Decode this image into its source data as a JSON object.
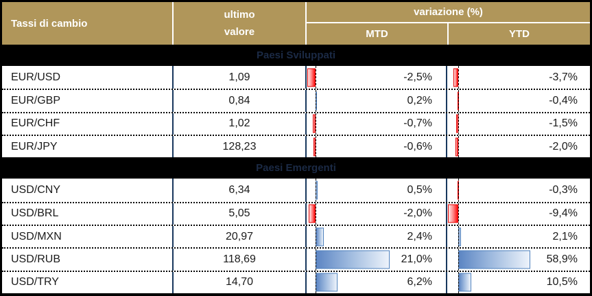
{
  "header": {
    "title": "Tassi di cambio",
    "value_line1": "ultimo",
    "value_line2": "valore",
    "variation": "variazione (%)",
    "mtd": "MTD",
    "ytd": "YTD"
  },
  "colors": {
    "header_gold": "#B0965A",
    "divider_navy": "#17375D",
    "section_black": "#000000",
    "negative_bar_red": "#FF0000",
    "positive_bar_blue": "#4F81BD"
  },
  "scales": {
    "mtd_max": 21.0,
    "ytd_max": 58.9
  },
  "sections": [
    {
      "label": "Paesi Sviluppati",
      "rows": [
        {
          "pair": "EUR/USD",
          "value": "1,09",
          "mtd": -2.5,
          "mtd_label": "-2,5%",
          "ytd": -3.7,
          "ytd_label": "-3,7%"
        },
        {
          "pair": "EUR/GBP",
          "value": "0,84",
          "mtd": 0.2,
          "mtd_label": "0,2%",
          "ytd": -0.4,
          "ytd_label": "-0,4%"
        },
        {
          "pair": "EUR/CHF",
          "value": "1,02",
          "mtd": -0.7,
          "mtd_label": "-0,7%",
          "ytd": -1.5,
          "ytd_label": "-1,5%"
        },
        {
          "pair": "EUR/JPY",
          "value": "128,23",
          "mtd": -0.6,
          "mtd_label": "-0,6%",
          "ytd": -2.0,
          "ytd_label": "-2,0%"
        }
      ]
    },
    {
      "label": "Paesi Emergenti",
      "rows": [
        {
          "pair": "USD/CNY",
          "value": "6,34",
          "mtd": 0.5,
          "mtd_label": "0,5%",
          "ytd": -0.3,
          "ytd_label": "-0,3%"
        },
        {
          "pair": "USD/BRL",
          "value": "5,05",
          "mtd": -2.0,
          "mtd_label": "-2,0%",
          "ytd": -9.4,
          "ytd_label": "-9,4%"
        },
        {
          "pair": "USD/MXN",
          "value": "20,97",
          "mtd": 2.4,
          "mtd_label": "2,4%",
          "ytd": 2.1,
          "ytd_label": "2,1%"
        },
        {
          "pair": "USD/RUB",
          "value": "118,69",
          "mtd": 21.0,
          "mtd_label": "21,0%",
          "ytd": 58.9,
          "ytd_label": "58,9%"
        },
        {
          "pair": "USD/TRY",
          "value": "14,70",
          "mtd": 6.2,
          "mtd_label": "6,2%",
          "ytd": 10.5,
          "ytd_label": "10,5%"
        }
      ]
    }
  ],
  "chart_data": {
    "type": "table",
    "title": "Tassi di cambio",
    "columns": [
      "Tassi di cambio",
      "ultimo valore",
      "variazione (%) MTD",
      "variazione (%) YTD"
    ],
    "column_scale_max": {
      "MTD": 21.0,
      "YTD": 58.9
    },
    "bar_style": "in-cell data bars from dashed baseline: negative = red gradient extending left, positive = blue gradient extending right",
    "sections": [
      {
        "name": "Paesi Sviluppati",
        "rows": [
          [
            "EUR/USD",
            1.09,
            -2.5,
            -3.7
          ],
          [
            "EUR/GBP",
            0.84,
            0.2,
            -0.4
          ],
          [
            "EUR/CHF",
            1.02,
            -0.7,
            -1.5
          ],
          [
            "EUR/JPY",
            128.23,
            -0.6,
            -2.0
          ]
        ]
      },
      {
        "name": "Paesi Emergenti",
        "rows": [
          [
            "USD/CNY",
            6.34,
            0.5,
            -0.3
          ],
          [
            "USD/BRL",
            5.05,
            -2.0,
            -9.4
          ],
          [
            "USD/MXN",
            20.97,
            2.4,
            2.1
          ],
          [
            "USD/RUB",
            118.69,
            21.0,
            58.9
          ],
          [
            "USD/TRY",
            14.7,
            6.2,
            10.5
          ]
        ]
      }
    ]
  }
}
